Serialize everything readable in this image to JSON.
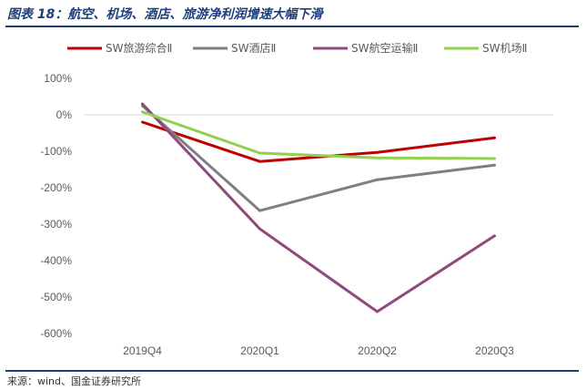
{
  "title": "图表 18：航空、机场、酒店、旅游净利润增速大幅下滑",
  "source": "来源：wind、国金证券研究所",
  "chart_data": {
    "type": "line",
    "categories": [
      "2019Q4",
      "2020Q1",
      "2020Q2",
      "2020Q3"
    ],
    "ylim": [
      -600,
      100
    ],
    "yticks": [
      100,
      0,
      -100,
      -200,
      -300,
      -400,
      -500,
      -600
    ],
    "ytick_labels": [
      "100%",
      "0%",
      "-100%",
      "-200%",
      "-300%",
      "-400%",
      "-500%",
      "-600%"
    ],
    "unit": "%",
    "grid": false,
    "legend_position": "top",
    "series": [
      {
        "name": "SW旅游综合Ⅱ",
        "color": "#c00000",
        "values": [
          -20,
          -128,
          -103,
          -63
        ]
      },
      {
        "name": "SW酒店Ⅱ",
        "color": "#7f7f7f",
        "values": [
          25,
          -263,
          -178,
          -138
        ]
      },
      {
        "name": "SW航空运输Ⅱ",
        "color": "#8e4a7c",
        "values": [
          30,
          -313,
          -540,
          -332
        ]
      },
      {
        "name": "SW机场Ⅱ",
        "color": "#92d050",
        "values": [
          8,
          -105,
          -118,
          -120
        ]
      }
    ]
  }
}
